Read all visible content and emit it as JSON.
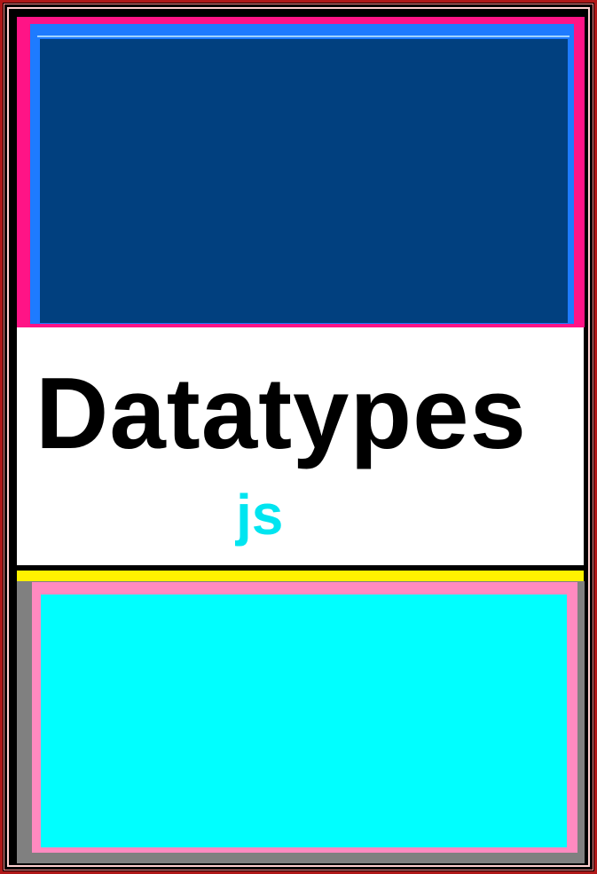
{
  "title": "Datatypes",
  "subtitle": "js",
  "colors": {
    "frame": "#000000",
    "top_border_pink": "#ff1486",
    "top_border_blue": "#1e7bff",
    "top_fill_navy": "#01407f",
    "title_band": "#ffffff",
    "title_text": "#000000",
    "subtitle_text": "#00e5f0",
    "bottom_stripe_yellow": "#fff200",
    "bottom_border_gray": "#808080",
    "bottom_border_pink": "#ff8ac0",
    "bottom_fill_cyan": "#00ffff"
  }
}
